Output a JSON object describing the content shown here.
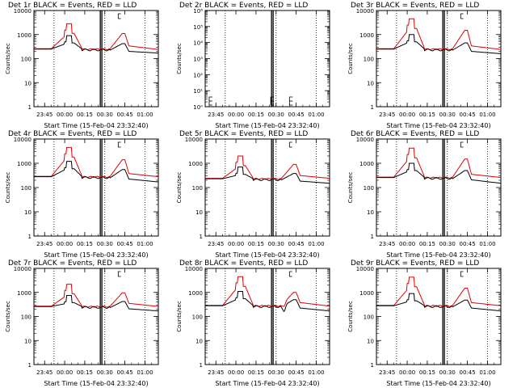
{
  "figure": {
    "xlabel": "Start Time (15-Feb-04 23:32:40)",
    "ylabel": "Counts/sec",
    "legend_text": "BLACK = Events, RED = LLD",
    "x_tick_labels": [
      "23:45",
      "00:00",
      "00:15",
      "00:30",
      "00:45",
      "01:00"
    ],
    "colors": {
      "events": "#000000",
      "lld": "#e00000"
    }
  },
  "chart_data": [
    {
      "type": "line",
      "title": "Det 1r  BLACK = Events, RED = LLD",
      "xlabel": "Start Time (15-Feb-04 23:32:40)",
      "ylabel": "Counts/sec",
      "y_scale": "log",
      "ylim": [
        1,
        10000
      ],
      "y_tick_labels": [
        "1",
        "10",
        "100",
        "1000",
        "10000"
      ],
      "x_tick_labels": [
        "23:45",
        "00:00",
        "00:15",
        "00:30",
        "00:45",
        "01:00"
      ],
      "data_present": true,
      "profile": "A",
      "events_base": 250,
      "events_peak": 900,
      "events_flare2": 420,
      "events_end": 170,
      "lld_base": 260,
      "lld_peak": 2800,
      "lld_flare2": 1100,
      "lld_end": 240
    },
    {
      "type": "line",
      "title": "Det 2r  BLACK = Events, RED = LLD",
      "xlabel": "Start Time (15-Feb-04 23:32:40)",
      "ylabel": "Counts/sec",
      "y_scale": "log",
      "ylim": [
        1,
        1000000
      ],
      "y_tick_labels": [
        "10⁰",
        "10¹",
        "10²",
        "10³",
        "10⁴",
        "10⁵",
        "10⁶"
      ],
      "x_tick_labels": [
        "23:45",
        "00:00",
        "00:15",
        "00:30",
        "00:45",
        "01:00"
      ],
      "data_present": false
    },
    {
      "type": "line",
      "title": "Det 3r  BLACK = Events, RED = LLD",
      "xlabel": "Start Time (15-Feb-04 23:32:40)",
      "ylabel": "Counts/sec",
      "y_scale": "log",
      "ylim": [
        1,
        10000
      ],
      "y_tick_labels": [
        "1",
        "10",
        "100",
        "1000",
        "10000"
      ],
      "x_tick_labels": [
        "23:45",
        "00:00",
        "00:15",
        "00:30",
        "00:45",
        "01:00"
      ],
      "data_present": true,
      "profile": "A",
      "events_base": 250,
      "events_peak": 1000,
      "events_flare2": 450,
      "events_end": 160,
      "lld_base": 260,
      "lld_peak": 4500,
      "lld_flare2": 1500,
      "lld_end": 240
    },
    {
      "type": "line",
      "title": "Det 4r  BLACK = Events, RED = LLD",
      "xlabel": "Start Time (15-Feb-04 23:32:40)",
      "ylabel": "Counts/sec",
      "y_scale": "log",
      "ylim": [
        1,
        10000
      ],
      "y_tick_labels": [
        "1",
        "10",
        "100",
        "1000",
        "10000"
      ],
      "x_tick_labels": [
        "23:45",
        "00:00",
        "00:15",
        "00:30",
        "00:45",
        "01:00"
      ],
      "data_present": true,
      "profile": "A",
      "events_base": 280,
      "events_peak": 1200,
      "events_flare2": 550,
      "events_end": 170,
      "lld_base": 290,
      "lld_peak": 4500,
      "lld_flare2": 1400,
      "lld_end": 280
    },
    {
      "type": "line",
      "title": "Det 5r  BLACK = Events, RED = LLD",
      "xlabel": "Start Time (15-Feb-04 23:32:40)",
      "ylabel": "Counts/sec",
      "y_scale": "log",
      "ylim": [
        1,
        10000
      ],
      "y_tick_labels": [
        "1",
        "10",
        "100",
        "1000",
        "10000"
      ],
      "x_tick_labels": [
        "23:45",
        "00:00",
        "00:15",
        "00:30",
        "00:45",
        "01:00"
      ],
      "data_present": true,
      "profile": "A",
      "events_base": 230,
      "events_peak": 700,
      "events_flare2": 380,
      "events_end": 150,
      "lld_base": 240,
      "lld_peak": 2000,
      "lld_flare2": 900,
      "lld_end": 240
    },
    {
      "type": "line",
      "title": "Det 6r  BLACK = Events, RED = LLD",
      "xlabel": "Start Time (15-Feb-04 23:32:40)",
      "ylabel": "Counts/sec",
      "y_scale": "log",
      "ylim": [
        1,
        10000
      ],
      "y_tick_labels": [
        "1",
        "10",
        "100",
        "1000",
        "10000"
      ],
      "x_tick_labels": [
        "23:45",
        "00:00",
        "00:15",
        "00:30",
        "00:45",
        "01:00"
      ],
      "data_present": true,
      "profile": "A",
      "events_base": 260,
      "events_peak": 1000,
      "events_flare2": 500,
      "events_end": 150,
      "lld_base": 270,
      "lld_peak": 4200,
      "lld_flare2": 1500,
      "lld_end": 260
    },
    {
      "type": "line",
      "title": "Det 7r  BLACK = Events, RED = LLD",
      "xlabel": "Start Time (15-Feb-04 23:32:40)",
      "ylabel": "Counts/sec",
      "y_scale": "log",
      "ylim": [
        1,
        10000
      ],
      "y_tick_labels": [
        "1",
        "10",
        "100",
        "1000",
        "10000"
      ],
      "x_tick_labels": [
        "23:45",
        "00:00",
        "00:15",
        "00:30",
        "00:45",
        "01:00"
      ],
      "data_present": true,
      "profile": "A",
      "events_base": 260,
      "events_peak": 750,
      "events_flare2": 420,
      "events_end": 170,
      "lld_base": 270,
      "lld_peak": 2200,
      "lld_flare2": 950,
      "lld_end": 260
    },
    {
      "type": "line",
      "title": "Det 8r  BLACK = Events, RED = LLD",
      "xlabel": "Start Time (15-Feb-04 23:32:40)",
      "ylabel": "Counts/sec",
      "y_scale": "log",
      "ylim": [
        1,
        10000
      ],
      "y_tick_labels": [
        "1",
        "10",
        "100",
        "1000",
        "10000"
      ],
      "x_tick_labels": [
        "23:45",
        "00:00",
        "00:15",
        "00:30",
        "00:45",
        "01:00"
      ],
      "data_present": true,
      "profile": "B",
      "events_base": 280,
      "events_peak": 1100,
      "events_flare2": 500,
      "events_end": 170,
      "lld_base": 290,
      "lld_peak": 4500,
      "lld_flare2": 1000,
      "lld_end": 270
    },
    {
      "type": "line",
      "title": "Det 9r  BLACK = Events, RED = LLD",
      "xlabel": "Start Time (15-Feb-04 23:32:40)",
      "ylabel": "Counts/sec",
      "y_scale": "log",
      "ylim": [
        1,
        10000
      ],
      "y_tick_labels": [
        "1",
        "10",
        "100",
        "1000",
        "10000"
      ],
      "x_tick_labels": [
        "23:45",
        "00:00",
        "00:15",
        "00:30",
        "00:45",
        "01:00"
      ],
      "data_present": true,
      "profile": "A",
      "events_base": 280,
      "events_peak": 900,
      "events_flare2": 480,
      "events_end": 170,
      "lld_base": 290,
      "lld_peak": 4300,
      "lld_flare2": 1500,
      "lld_end": 280
    }
  ]
}
